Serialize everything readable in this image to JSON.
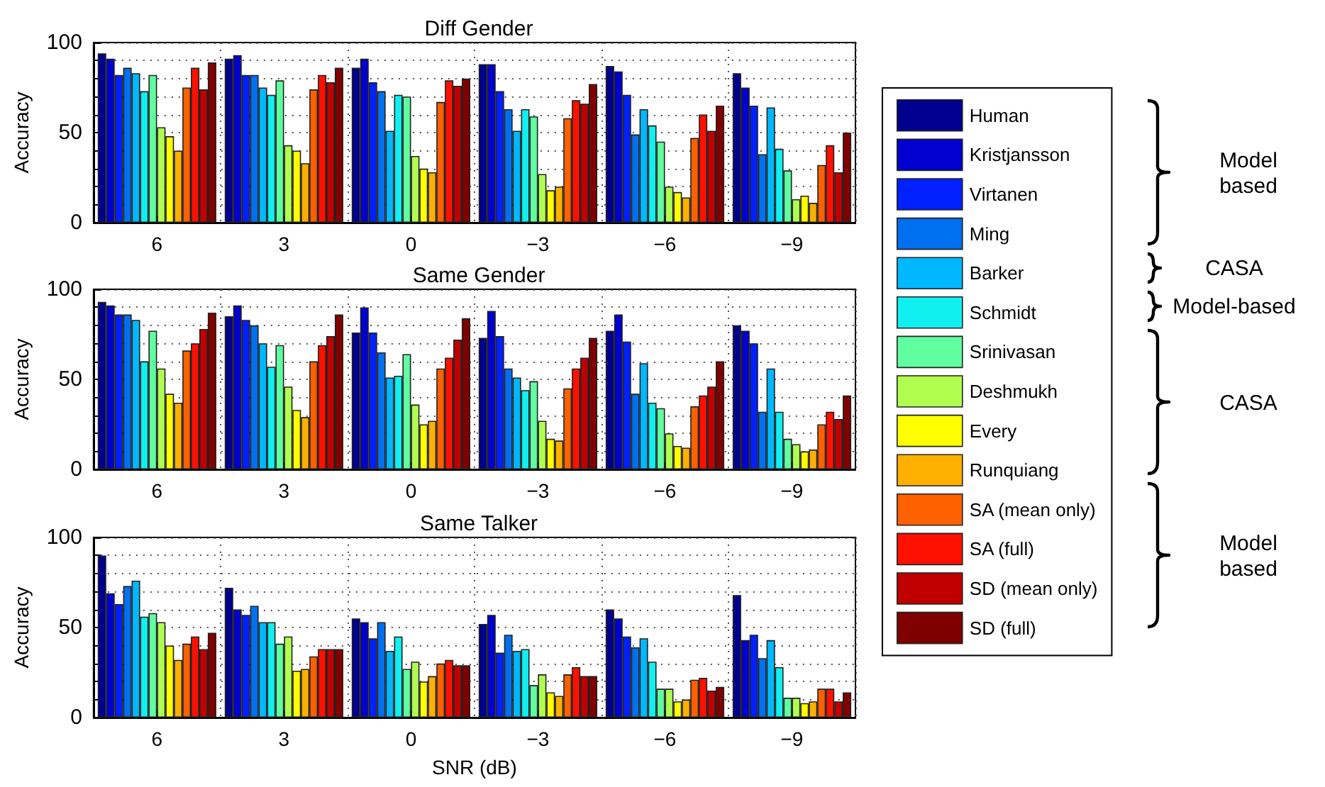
{
  "chart_data": [
    {
      "type": "bar",
      "title": "Diff Gender",
      "ylabel": "Accuracy",
      "categories": [
        "6",
        "3",
        "0",
        "−3",
        "−6",
        "−9"
      ],
      "ylim": [
        0,
        100
      ],
      "yticks": [
        0,
        {
          "value": 10,
          "label": null
        },
        {
          "value": 20,
          "label": null
        },
        {
          "value": 30,
          "label": null
        },
        {
          "value": 40,
          "label": null
        },
        50,
        {
          "value": 60,
          "label": null
        },
        {
          "value": 70,
          "label": null
        },
        {
          "value": 80,
          "label": null
        },
        {
          "value": 90,
          "label": null
        },
        100
      ],
      "grid": true,
      "legend": "right",
      "annotations": [
        "Model based",
        "CASA",
        "Model-based",
        "CASA",
        "Model based"
      ],
      "series": [
        {
          "name": "Human",
          "color": "#00008f",
          "values": [
            94,
            91,
            86,
            88,
            87,
            83
          ]
        },
        {
          "name": "Kristjansson",
          "color": "#0000d0",
          "values": [
            91,
            93,
            91,
            88,
            84,
            75
          ]
        },
        {
          "name": "Virtanen",
          "color": "#0020ff",
          "values": [
            82,
            82,
            78,
            73,
            71,
            65
          ]
        },
        {
          "name": "Ming",
          "color": "#0070f0",
          "values": [
            86,
            82,
            73,
            63,
            49,
            38
          ]
        },
        {
          "name": "Barker",
          "color": "#00b8ff",
          "values": [
            83,
            75,
            51,
            51,
            63,
            64
          ]
        },
        {
          "name": "Schmidt",
          "color": "#10f0f0",
          "values": [
            73,
            71,
            71,
            63,
            54,
            41
          ]
        },
        {
          "name": "Srinivasan",
          "color": "#60ffa0",
          "values": [
            82,
            79,
            70,
            59,
            45,
            29
          ]
        },
        {
          "name": "Deshmukh",
          "color": "#b0ff50",
          "values": [
            53,
            43,
            37,
            27,
            20,
            13
          ]
        },
        {
          "name": "Every",
          "color": "#ffff00",
          "values": [
            48,
            40,
            30,
            18,
            17,
            15
          ]
        },
        {
          "name": "Runquiang",
          "color": "#ffb000",
          "values": [
            40,
            33,
            28,
            20,
            14,
            11
          ]
        },
        {
          "name": "SA (mean only)",
          "color": "#ff6000",
          "values": [
            75,
            74,
            67,
            58,
            47,
            32
          ]
        },
        {
          "name": "SA (full)",
          "color": "#ff1000",
          "values": [
            86,
            82,
            79,
            68,
            60,
            43
          ]
        },
        {
          "name": "SD (mean only)",
          "color": "#c00000",
          "values": [
            74,
            78,
            76,
            66,
            51,
            28
          ]
        },
        {
          "name": "SD (full)",
          "color": "#800000",
          "values": [
            89,
            86,
            80,
            77,
            65,
            50
          ]
        }
      ]
    },
    {
      "type": "bar",
      "title": "Same Gender",
      "ylabel": "Accuracy",
      "categories": [
        "6",
        "3",
        "0",
        "−3",
        "−6",
        "−9"
      ],
      "ylim": [
        0,
        100
      ],
      "yticks": [
        0,
        {
          "value": 10,
          "label": null
        },
        {
          "value": 20,
          "label": null
        },
        {
          "value": 30,
          "label": null
        },
        {
          "value": 40,
          "label": null
        },
        50,
        {
          "value": 60,
          "label": null
        },
        {
          "value": 70,
          "label": null
        },
        {
          "value": 80,
          "label": null
        },
        {
          "value": 90,
          "label": null
        },
        100
      ],
      "grid": true,
      "series": [
        {
          "color": "#00008f",
          "values": [
            93,
            85,
            76,
            73,
            77,
            80
          ]
        },
        {
          "color": "#0000d0",
          "values": [
            91,
            91,
            90,
            88,
            86,
            77
          ]
        },
        {
          "color": "#0020ff",
          "values": [
            86,
            83,
            76,
            74,
            71,
            70
          ]
        },
        {
          "color": "#0070f0",
          "values": [
            86,
            80,
            65,
            56,
            42,
            32
          ]
        },
        {
          "color": "#00b8ff",
          "values": [
            83,
            70,
            51,
            51,
            59,
            56
          ]
        },
        {
          "color": "#10f0f0",
          "values": [
            60,
            57,
            52,
            44,
            37,
            32
          ]
        },
        {
          "color": "#60ffa0",
          "values": [
            77,
            69,
            64,
            49,
            34,
            17
          ]
        },
        {
          "color": "#b0ff50",
          "values": [
            56,
            46,
            36,
            27,
            20,
            14
          ]
        },
        {
          "color": "#ffff00",
          "values": [
            42,
            33,
            25,
            17,
            13,
            10
          ]
        },
        {
          "color": "#ffb000",
          "values": [
            37,
            29,
            27,
            16,
            12,
            11
          ]
        },
        {
          "color": "#ff6000",
          "values": [
            66,
            60,
            56,
            45,
            35,
            25
          ]
        },
        {
          "color": "#ff1000",
          "values": [
            70,
            69,
            62,
            56,
            41,
            32
          ]
        },
        {
          "color": "#c00000",
          "values": [
            78,
            74,
            72,
            62,
            46,
            28
          ]
        },
        {
          "color": "#800000",
          "values": [
            87,
            86,
            84,
            73,
            60,
            41
          ]
        }
      ]
    },
    {
      "type": "bar",
      "title": "Same Talker",
      "ylabel": "Accuracy",
      "xlabel": "SNR (dB)",
      "categories": [
        "6",
        "3",
        "0",
        "−3",
        "−6",
        "−9"
      ],
      "ylim": [
        0,
        100
      ],
      "yticks": [
        0,
        {
          "value": 10,
          "label": null
        },
        {
          "value": 20,
          "label": null
        },
        {
          "value": 30,
          "label": null
        },
        {
          "value": 40,
          "label": null
        },
        50,
        {
          "value": 60,
          "label": null
        },
        {
          "value": 70,
          "label": null
        },
        {
          "value": 80,
          "label": null
        },
        {
          "value": 90,
          "label": null
        },
        100
      ],
      "grid": true,
      "series": [
        {
          "color": "#00008f",
          "values": [
            90,
            72,
            55,
            52,
            60,
            68
          ]
        },
        {
          "color": "#0000d0",
          "values": [
            69,
            60,
            53,
            57,
            55,
            43
          ]
        },
        {
          "color": "#0020ff",
          "values": [
            63,
            57,
            44,
            36,
            45,
            46
          ]
        },
        {
          "color": "#0070f0",
          "values": [
            73,
            62,
            53,
            46,
            39,
            33
          ]
        },
        {
          "color": "#00b8ff",
          "values": [
            76,
            53,
            37,
            37,
            44,
            43
          ]
        },
        {
          "color": "#10f0f0",
          "values": [
            56,
            53,
            45,
            38,
            31,
            28
          ]
        },
        {
          "color": "#60ffa0",
          "values": [
            58,
            41,
            27,
            18,
            16,
            11
          ]
        },
        {
          "color": "#b0ff50",
          "values": [
            53,
            45,
            31,
            24,
            16,
            11
          ]
        },
        {
          "color": "#ffff00",
          "values": [
            40,
            26,
            20,
            14,
            9,
            8
          ]
        },
        {
          "color": "#ffb000",
          "values": [
            32,
            27,
            23,
            12,
            10,
            9
          ]
        },
        {
          "color": "#ff6000",
          "values": [
            41,
            34,
            30,
            24,
            21,
            16
          ]
        },
        {
          "color": "#ff1000",
          "values": [
            45,
            38,
            32,
            28,
            22,
            16
          ]
        },
        {
          "color": "#c00000",
          "values": [
            38,
            38,
            29,
            23,
            15,
            9
          ]
        },
        {
          "color": "#800000",
          "values": [
            47,
            38,
            29,
            23,
            17,
            14
          ]
        }
      ]
    }
  ]
}
